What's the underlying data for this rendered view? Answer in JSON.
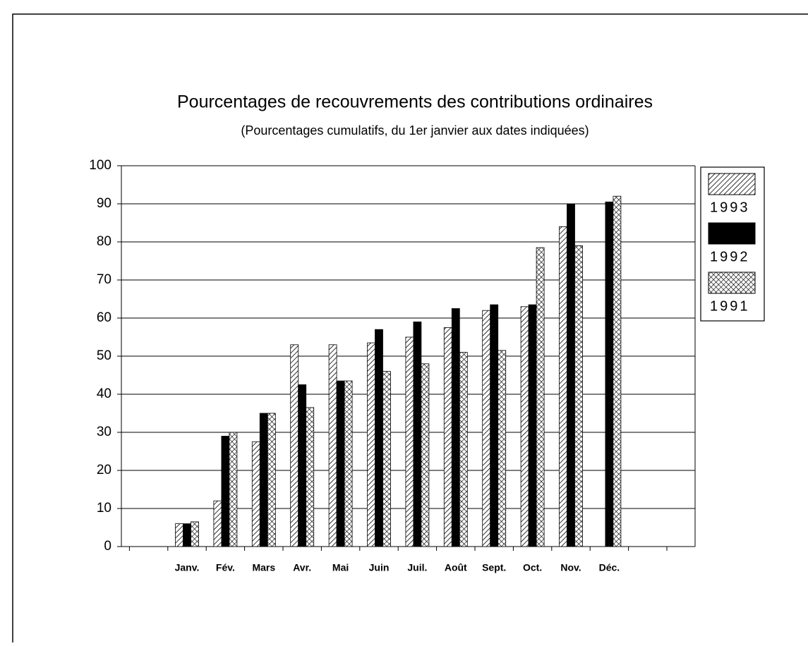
{
  "chart_data": {
    "type": "bar",
    "title": "Pourcentages de recouvrements des contributions ordinaires",
    "subtitle": "(Pourcentages cumulatifs, du 1er janvier aux dates indiquées)",
    "categories": [
      "Janv.",
      "Fév.",
      "Mars",
      "Avr.",
      "Mai",
      "Juin",
      "Juil.",
      "Août",
      "Sept.",
      "Oct.",
      "Nov.",
      "Déc."
    ],
    "series": [
      {
        "name": "1993",
        "color": "#000000",
        "pattern": "hatch",
        "values": [
          6,
          12,
          27.5,
          53,
          53,
          53.5,
          55,
          57.5,
          62,
          63,
          84,
          null
        ]
      },
      {
        "name": "1992",
        "color": "#000000",
        "pattern": "solid",
        "values": [
          6,
          29,
          35,
          42.5,
          43.5,
          57,
          59,
          62.5,
          63.5,
          63.5,
          90,
          90.5
        ]
      },
      {
        "name": "1991",
        "color": "#000000",
        "pattern": "crosshatch",
        "values": [
          6.5,
          30,
          35,
          36.5,
          43.5,
          46,
          48,
          51,
          51.5,
          78.5,
          79,
          92
        ]
      }
    ],
    "ylim": [
      0,
      100
    ],
    "yticks": [
      0,
      10,
      20,
      30,
      40,
      50,
      60,
      70,
      80,
      90,
      100
    ],
    "grid": true,
    "legend": "right"
  }
}
